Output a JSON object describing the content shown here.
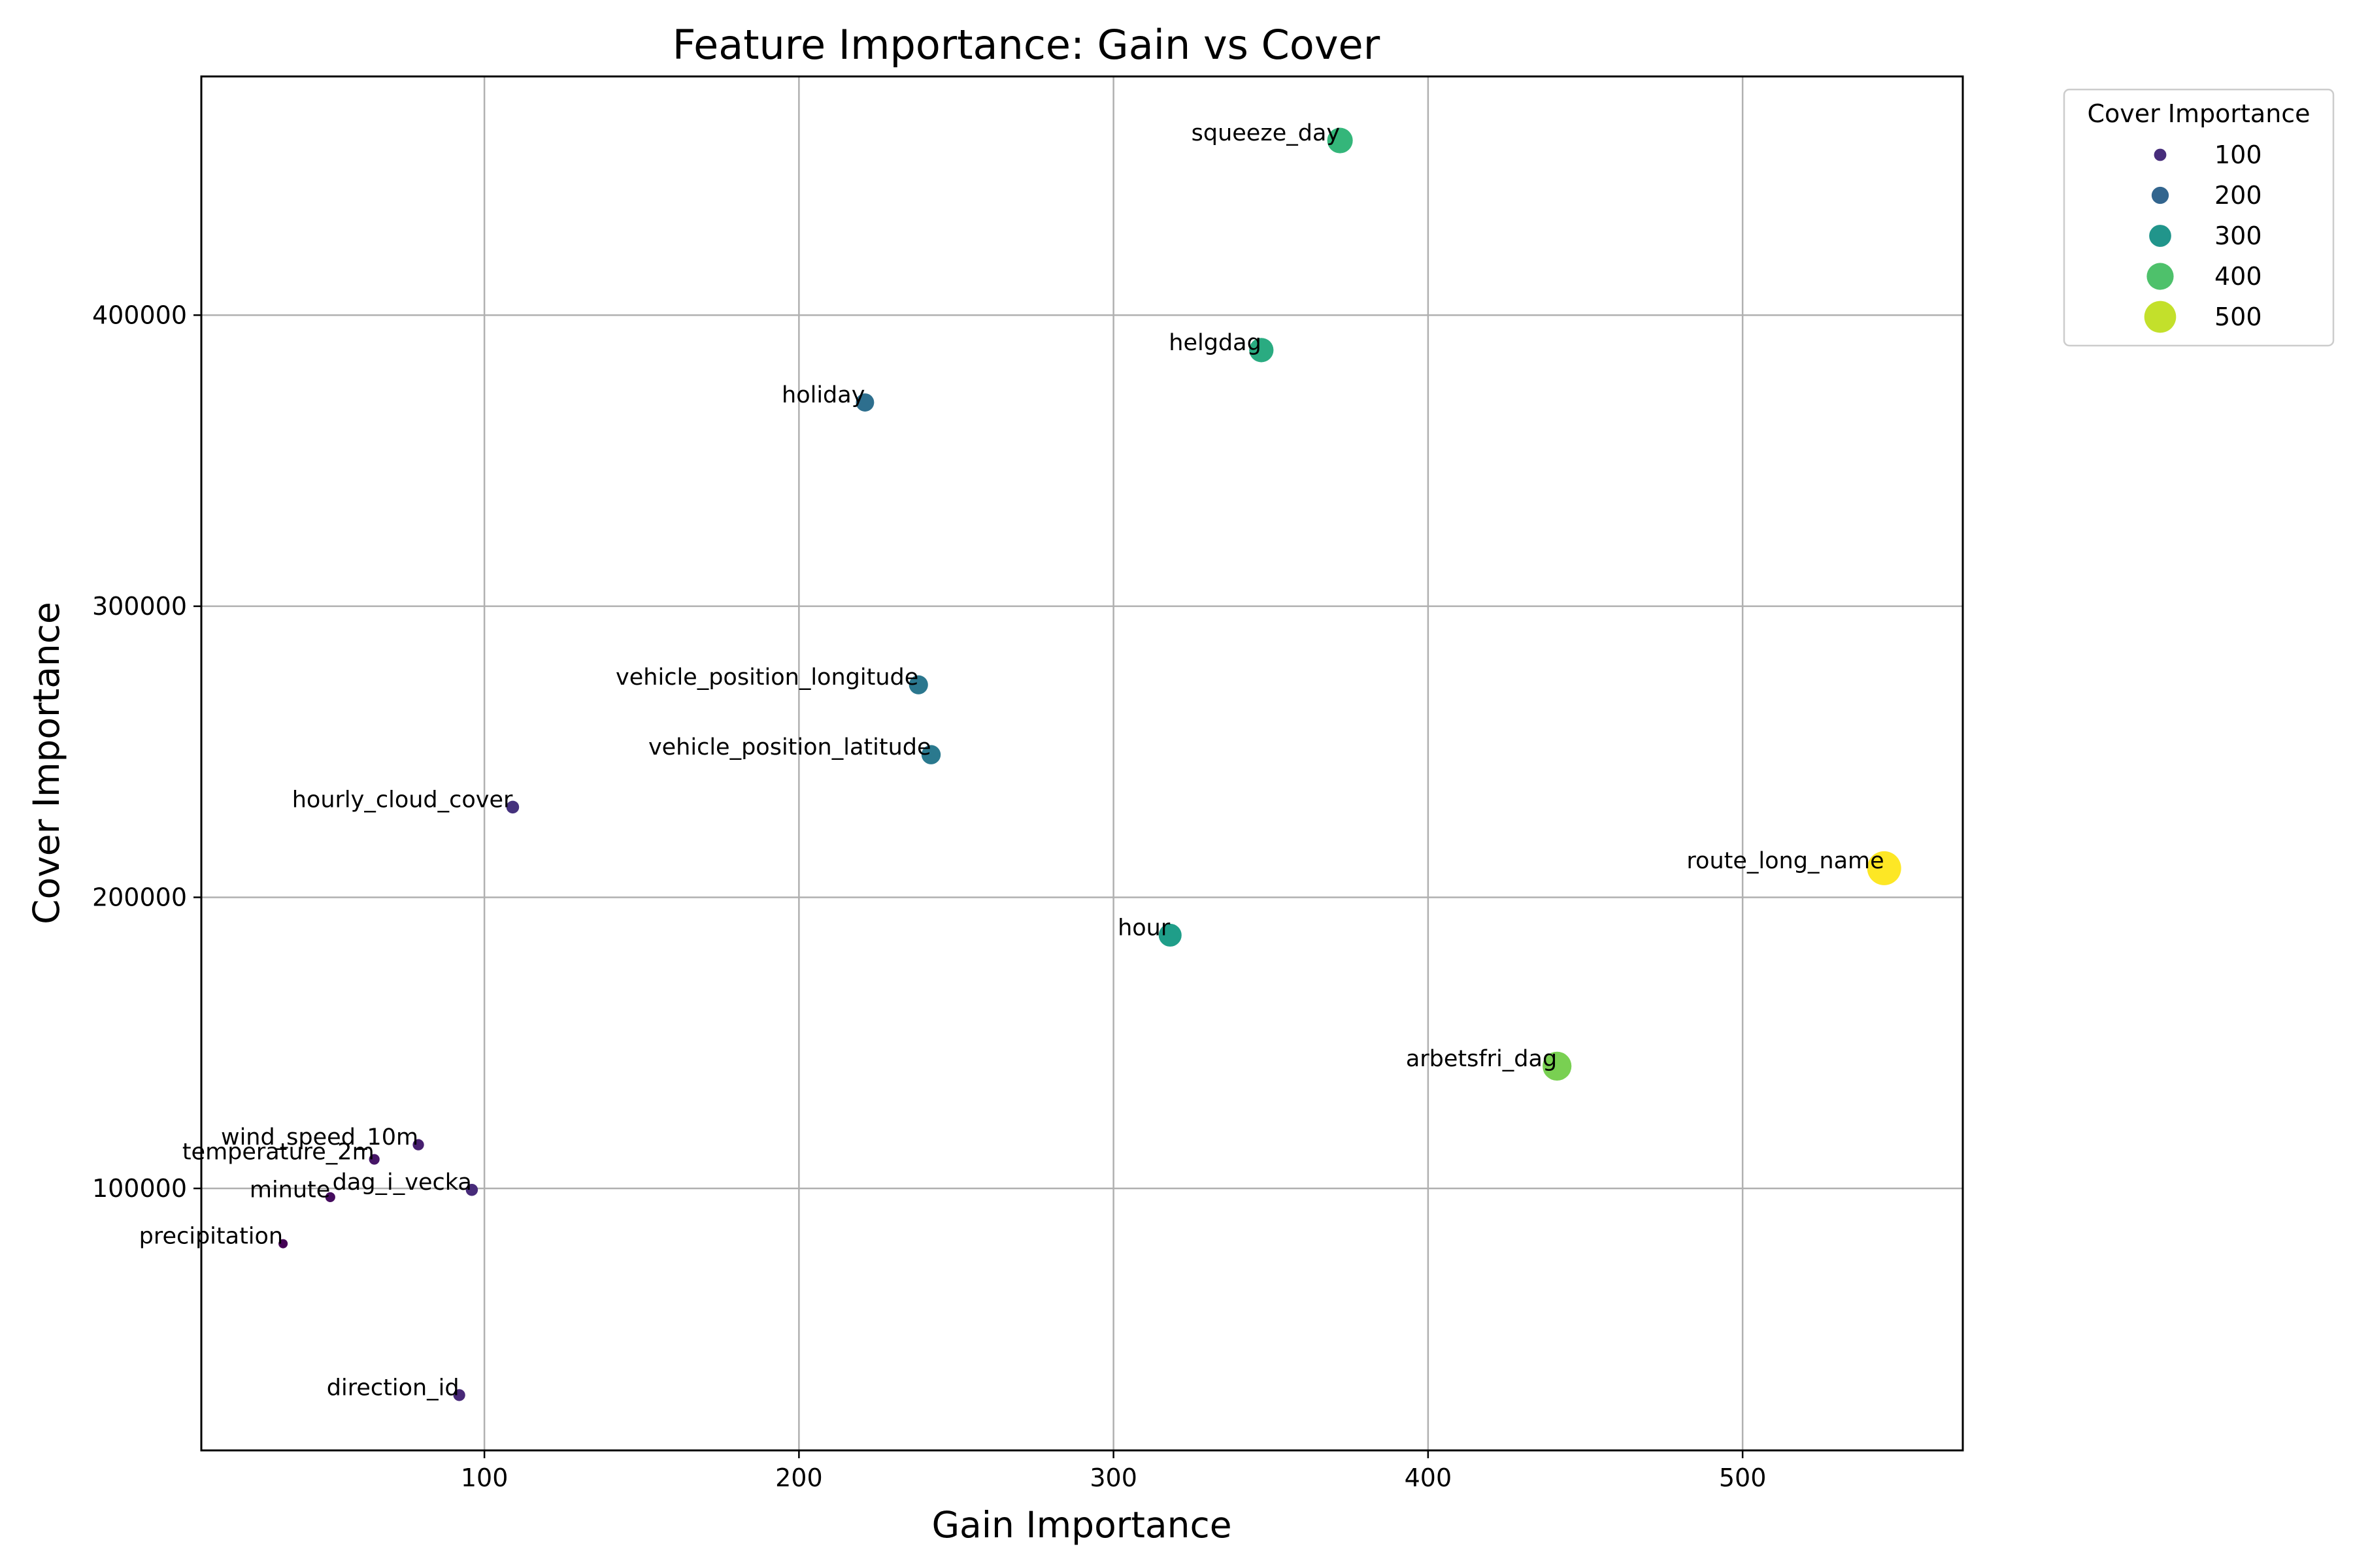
{
  "chart_data": {
    "type": "scatter",
    "title": "Feature Importance: Gain vs Cover",
    "xlabel": "Gain Importance",
    "ylabel": "Cover Importance",
    "xlim": [
      10,
      570
    ],
    "ylim": [
      10000,
      482000
    ],
    "xticks": [
      100,
      200,
      300,
      400,
      500
    ],
    "yticks": [
      100000,
      200000,
      300000,
      400000
    ],
    "grid": true,
    "size_and_color_encode": "Cover Importance",
    "colormap": "viridis",
    "color_range": [
      35,
      545
    ],
    "points": [
      {
        "label": "squeeze_day",
        "x": 372,
        "y": 460000,
        "c": 372
      },
      {
        "label": "helgdag",
        "x": 347,
        "y": 388000,
        "c": 347
      },
      {
        "label": "holiday",
        "x": 221,
        "y": 370000,
        "c": 221
      },
      {
        "label": "vehicle_position_longitude",
        "x": 238,
        "y": 273000,
        "c": 238
      },
      {
        "label": "vehicle_position_latitude",
        "x": 242,
        "y": 249000,
        "c": 242
      },
      {
        "label": "hourly_cloud_cover",
        "x": 109,
        "y": 231000,
        "c": 109
      },
      {
        "label": "route_long_name",
        "x": 545,
        "y": 210000,
        "c": 545
      },
      {
        "label": "hour",
        "x": 318,
        "y": 187000,
        "c": 318
      },
      {
        "label": "arbetsfri_dag",
        "x": 441,
        "y": 142000,
        "c": 441
      },
      {
        "label": "wind_speed_10m",
        "x": 79,
        "y": 115000,
        "c": 79
      },
      {
        "label": "temperature_2m",
        "x": 65,
        "y": 110000,
        "c": 65
      },
      {
        "label": "dag_i_vecka",
        "x": 96,
        "y": 99500,
        "c": 96
      },
      {
        "label": "minute",
        "x": 51,
        "y": 97000,
        "c": 51
      },
      {
        "label": "precipitation",
        "x": 36,
        "y": 81000,
        "c": 36
      },
      {
        "label": "direction_id",
        "x": 92,
        "y": 29000,
        "c": 92
      }
    ],
    "legend": {
      "title": "Cover Importance",
      "placement": "outside-top-right",
      "entries": [
        {
          "label": "100",
          "value": 100
        },
        {
          "label": "200",
          "value": 200
        },
        {
          "label": "300",
          "value": 300
        },
        {
          "label": "400",
          "value": 400
        },
        {
          "label": "500",
          "value": 500
        }
      ]
    }
  }
}
